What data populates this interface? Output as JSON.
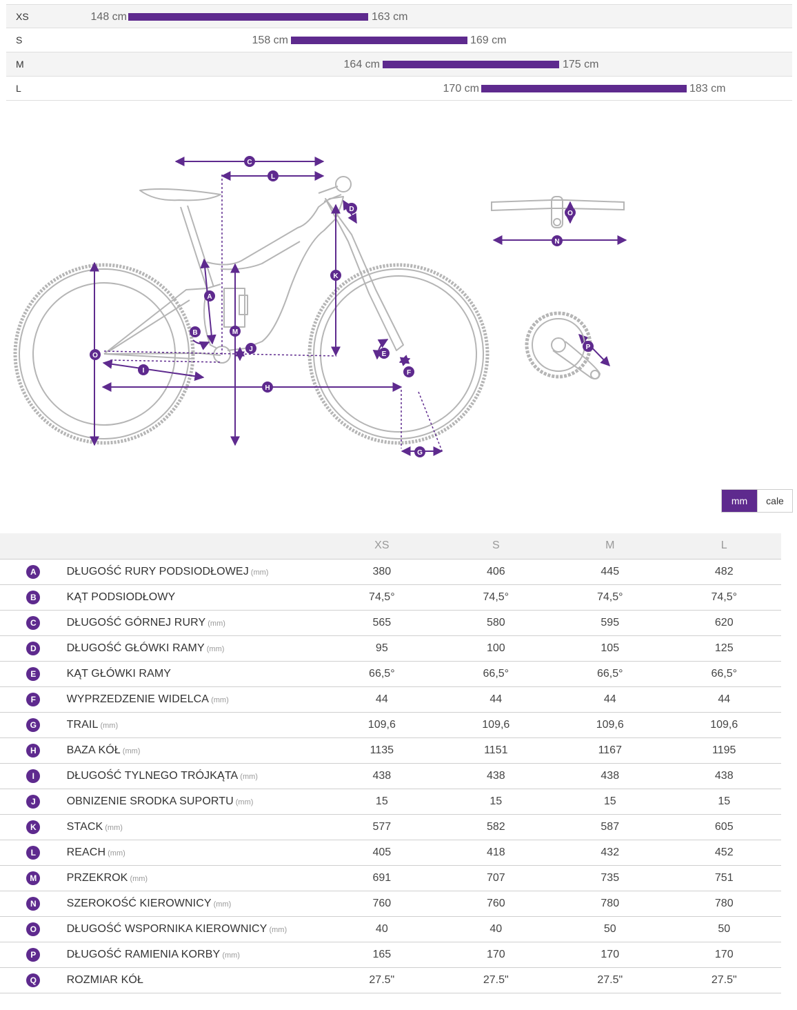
{
  "size_chart": {
    "rows": [
      {
        "size": "XS",
        "min": "148 cm",
        "max": "163 cm"
      },
      {
        "size": "S",
        "min": "158 cm",
        "max": "169 cm"
      },
      {
        "size": "M",
        "min": "164 cm",
        "max": "175 cm"
      },
      {
        "size": "L",
        "min": "170 cm",
        "max": "183 cm"
      }
    ]
  },
  "diagram": {
    "labels": [
      "A",
      "B",
      "C",
      "D",
      "E",
      "F",
      "G",
      "H",
      "I",
      "J",
      "K",
      "L",
      "M",
      "N",
      "O",
      "O",
      "P"
    ]
  },
  "unit_toggle": {
    "mm_label": "mm",
    "in_label": "cale",
    "selected": "mm"
  },
  "geometry_table": {
    "headers": [
      "XS",
      "S",
      "M",
      "L"
    ],
    "rows": [
      {
        "letter": "A",
        "name": "DŁUGOŚĆ RURY PODSIODŁOWEJ",
        "unit": "(mm)",
        "values": [
          "380",
          "406",
          "445",
          "482"
        ]
      },
      {
        "letter": "B",
        "name": "KĄT PODSIODŁOWY",
        "unit": "",
        "values": [
          "74,5°",
          "74,5°",
          "74,5°",
          "74,5°"
        ]
      },
      {
        "letter": "C",
        "name": "DŁUGOŚĆ GÓRNEJ RURY",
        "unit": "(mm)",
        "values": [
          "565",
          "580",
          "595",
          "620"
        ]
      },
      {
        "letter": "D",
        "name": "DŁUGOŚĆ GŁÓWKI RAMY",
        "unit": "(mm)",
        "values": [
          "95",
          "100",
          "105",
          "125"
        ]
      },
      {
        "letter": "E",
        "name": "KĄT GŁÓWKI RAMY",
        "unit": "",
        "values": [
          "66,5°",
          "66,5°",
          "66,5°",
          "66,5°"
        ]
      },
      {
        "letter": "F",
        "name": "WYPRZEDZENIE WIDELCA",
        "unit": "(mm)",
        "values": [
          "44",
          "44",
          "44",
          "44"
        ]
      },
      {
        "letter": "G",
        "name": "TRAIL",
        "unit": "(mm)",
        "values": [
          "109,6",
          "109,6",
          "109,6",
          "109,6"
        ]
      },
      {
        "letter": "H",
        "name": "BAZA KÓŁ",
        "unit": "(mm)",
        "values": [
          "1135",
          "1151",
          "1167",
          "1195"
        ]
      },
      {
        "letter": "I",
        "name": "DŁUGOŚĆ TYLNEGO TRÓJKĄTA",
        "unit": "(mm)",
        "values": [
          "438",
          "438",
          "438",
          "438"
        ]
      },
      {
        "letter": "J",
        "name": "OBNIZENIE SRODKA SUPORTU",
        "unit": "(mm)",
        "values": [
          "15",
          "15",
          "15",
          "15"
        ]
      },
      {
        "letter": "K",
        "name": "STACK",
        "unit": "(mm)",
        "values": [
          "577",
          "582",
          "587",
          "605"
        ]
      },
      {
        "letter": "L",
        "name": "REACH",
        "unit": "(mm)",
        "values": [
          "405",
          "418",
          "432",
          "452"
        ]
      },
      {
        "letter": "M",
        "name": "PRZEKROK",
        "unit": "(mm)",
        "values": [
          "691",
          "707",
          "735",
          "751"
        ]
      },
      {
        "letter": "N",
        "name": "SZEROKOŚĆ KIEROWNICY",
        "unit": "(mm)",
        "values": [
          "760",
          "760",
          "780",
          "780"
        ]
      },
      {
        "letter": "O",
        "name": "DŁUGOŚĆ WSPORNIKA KIEROWNICY",
        "unit": "(mm)",
        "values": [
          "40",
          "40",
          "50",
          "50"
        ]
      },
      {
        "letter": "P",
        "name": "DŁUGOŚĆ RAMIENIA KORBY",
        "unit": "(mm)",
        "values": [
          "165",
          "170",
          "170",
          "170"
        ]
      },
      {
        "letter": "Q",
        "name": "ROZMIAR KÓŁ",
        "unit": "",
        "values": [
          "27.5\"",
          "27.5\"",
          "27.5\"",
          "27.5\""
        ]
      }
    ]
  },
  "colors": {
    "accent": "#5e2a8e",
    "bike_line": "#b5b5b5",
    "row_border": "#cfcfcf"
  }
}
